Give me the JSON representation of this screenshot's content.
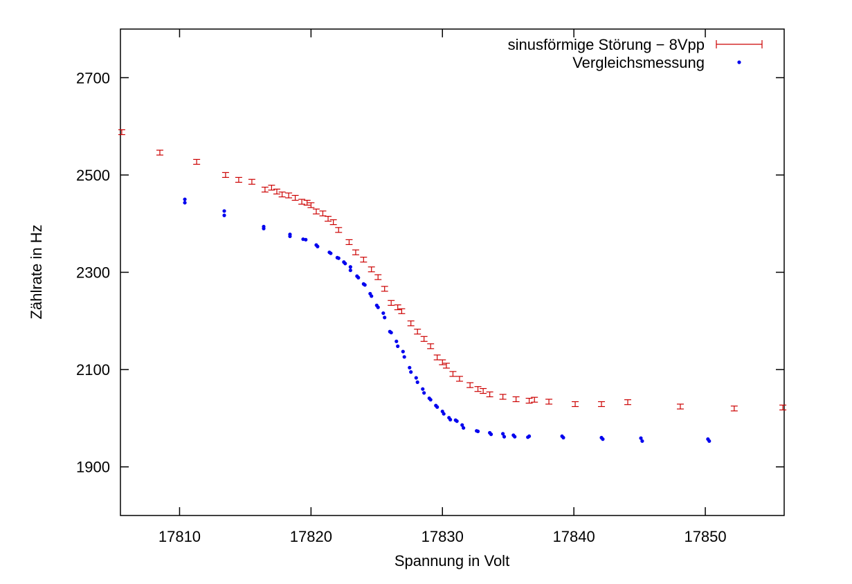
{
  "chart_data": {
    "type": "scatter",
    "title": "",
    "xlabel": "Spannung in Volt",
    "ylabel": "Zählrate in Hz",
    "xlim": [
      17805.5,
      17856
    ],
    "ylim": [
      1800,
      2800
    ],
    "xticks": [
      17810,
      17820,
      17830,
      17840,
      17850
    ],
    "yticks": [
      1900,
      2100,
      2300,
      2500,
      2700
    ],
    "grid": false,
    "legend_position": "top-right",
    "colors": {
      "series1": "#cc0000",
      "series2": "#0000ee"
    },
    "series": [
      {
        "name": "sinusförmige Störung − 8Vpp",
        "marker": "errorbar",
        "error": 5,
        "points": [
          [
            17805.6,
            2588
          ],
          [
            17808.5,
            2546
          ],
          [
            17811.3,
            2527
          ],
          [
            17813.5,
            2500
          ],
          [
            17814.5,
            2490
          ],
          [
            17815.5,
            2486
          ],
          [
            17816.5,
            2470
          ],
          [
            17817.0,
            2474
          ],
          [
            17817.4,
            2466
          ],
          [
            17817.8,
            2460
          ],
          [
            17818.3,
            2458
          ],
          [
            17818.8,
            2453
          ],
          [
            17819.3,
            2445
          ],
          [
            17819.7,
            2443
          ],
          [
            17820.0,
            2438
          ],
          [
            17820.4,
            2425
          ],
          [
            17820.9,
            2421
          ],
          [
            17821.3,
            2410
          ],
          [
            17821.7,
            2403
          ],
          [
            17822.1,
            2387
          ],
          [
            17822.9,
            2362
          ],
          [
            17823.4,
            2341
          ],
          [
            17824.0,
            2326
          ],
          [
            17824.6,
            2306
          ],
          [
            17825.1,
            2290
          ],
          [
            17825.6,
            2266
          ],
          [
            17826.1,
            2237
          ],
          [
            17826.6,
            2228
          ],
          [
            17826.9,
            2220
          ],
          [
            17827.6,
            2195
          ],
          [
            17828.1,
            2178
          ],
          [
            17828.6,
            2163
          ],
          [
            17829.1,
            2148
          ],
          [
            17829.6,
            2125
          ],
          [
            17830.0,
            2115
          ],
          [
            17830.3,
            2108
          ],
          [
            17830.8,
            2091
          ],
          [
            17831.3,
            2081
          ],
          [
            17832.1,
            2068
          ],
          [
            17832.7,
            2060
          ],
          [
            17833.1,
            2056
          ],
          [
            17833.6,
            2049
          ],
          [
            17834.6,
            2044
          ],
          [
            17835.6,
            2039
          ],
          [
            17836.6,
            2036
          ],
          [
            17837.0,
            2038
          ],
          [
            17838.1,
            2034
          ],
          [
            17840.1,
            2029
          ],
          [
            17842.1,
            2029
          ],
          [
            17844.1,
            2033
          ],
          [
            17848.1,
            2024
          ],
          [
            17852.2,
            2020
          ],
          [
            17855.9,
            2022
          ]
        ]
      },
      {
        "name": "Vergleichsmessung",
        "marker": "dot",
        "points": [
          [
            17810.4,
            2450
          ],
          [
            17810.4,
            2443
          ],
          [
            17813.4,
            2426
          ],
          [
            17813.4,
            2417
          ],
          [
            17816.4,
            2394
          ],
          [
            17816.4,
            2390
          ],
          [
            17818.4,
            2378
          ],
          [
            17818.4,
            2374
          ],
          [
            17819.4,
            2368
          ],
          [
            17819.6,
            2367
          ],
          [
            17820.4,
            2356
          ],
          [
            17820.5,
            2353
          ],
          [
            17821.4,
            2341
          ],
          [
            17821.5,
            2339
          ],
          [
            17822.0,
            2330
          ],
          [
            17822.1,
            2329
          ],
          [
            17822.5,
            2321
          ],
          [
            17822.6,
            2318
          ],
          [
            17823.0,
            2311
          ],
          [
            17823.0,
            2304
          ],
          [
            17823.5,
            2292
          ],
          [
            17823.6,
            2289
          ],
          [
            17824.0,
            2276
          ],
          [
            17824.1,
            2274
          ],
          [
            17824.5,
            2256
          ],
          [
            17824.6,
            2251
          ],
          [
            17825.0,
            2232
          ],
          [
            17825.1,
            2228
          ],
          [
            17825.5,
            2216
          ],
          [
            17825.6,
            2207
          ],
          [
            17826.0,
            2178
          ],
          [
            17826.1,
            2176
          ],
          [
            17826.5,
            2158
          ],
          [
            17826.6,
            2148
          ],
          [
            17827.0,
            2137
          ],
          [
            17827.1,
            2126
          ],
          [
            17827.5,
            2104
          ],
          [
            17827.6,
            2095
          ],
          [
            17828.0,
            2083
          ],
          [
            17828.1,
            2074
          ],
          [
            17828.5,
            2060
          ],
          [
            17828.6,
            2052
          ],
          [
            17829.0,
            2041
          ],
          [
            17829.1,
            2038
          ],
          [
            17829.5,
            2026
          ],
          [
            17829.6,
            2023
          ],
          [
            17830.0,
            2014
          ],
          [
            17830.1,
            2009
          ],
          [
            17830.5,
            2001
          ],
          [
            17830.6,
            1997
          ],
          [
            17831.0,
            1996
          ],
          [
            17831.1,
            1994
          ],
          [
            17831.5,
            1986
          ],
          [
            17831.6,
            1980
          ],
          [
            17832.6,
            1974
          ],
          [
            17832.7,
            1973
          ],
          [
            17833.6,
            1970
          ],
          [
            17833.7,
            1967
          ],
          [
            17834.6,
            1968
          ],
          [
            17834.7,
            1962
          ],
          [
            17835.4,
            1965
          ],
          [
            17835.5,
            1962
          ],
          [
            17836.5,
            1961
          ],
          [
            17836.6,
            1963
          ],
          [
            17839.1,
            1963
          ],
          [
            17839.2,
            1960
          ],
          [
            17842.1,
            1960
          ],
          [
            17842.2,
            1957
          ],
          [
            17845.1,
            1959
          ],
          [
            17845.2,
            1953
          ],
          [
            17850.2,
            1957
          ],
          [
            17850.3,
            1953
          ]
        ]
      }
    ]
  }
}
